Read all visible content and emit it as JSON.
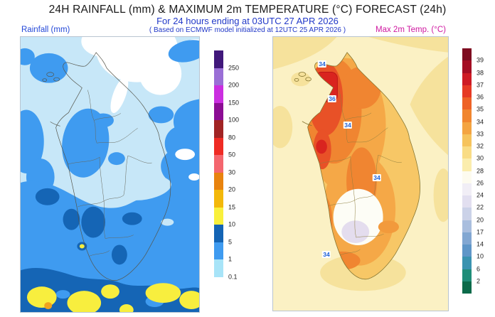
{
  "header": {
    "title": "24H RAINFALL (mm) & MAXIMUM 2m TEMPERATURE (°C) FORECAST (24h)",
    "subtitle": "For 24 hours ending at 03UTC 27 APR 2026",
    "model_note": "( Based on ECMWF model initialized at 12UTC 25 APR 2026 )"
  },
  "rainfall_panel": {
    "label": "Rainfall (mm)",
    "colorbar": {
      "unit": "mm",
      "tick_labels": [
        "250",
        "200",
        "150",
        "100",
        "80",
        "50",
        "30",
        "20",
        "15",
        "10",
        "5",
        "1",
        "0.1"
      ],
      "segment_colors_top_to_bottom": [
        "#41187b",
        "#9a6fd6",
        "#cb2ee0",
        "#8c0d94",
        "#a12424",
        "#ef2b24",
        "#f4666e",
        "#e8830e",
        "#f3b80a",
        "#f9f03c",
        "#1464b4",
        "#3f9bf0",
        "#a8e4f8"
      ]
    }
  },
  "temperature_panel": {
    "label": "Max 2m Temp. (°C)",
    "colorbar": {
      "unit": "°C",
      "tick_labels": [
        "39",
        "38",
        "37",
        "36",
        "35",
        "34",
        "33",
        "32",
        "30",
        "28",
        "26",
        "24",
        "22",
        "20",
        "17",
        "14",
        "10",
        "6",
        "2"
      ],
      "segment_colors_top_to_bottom": [
        "#7e0c20",
        "#a40e23",
        "#ce1b24",
        "#e63a24",
        "#ee6226",
        "#f1862f",
        "#f4a441",
        "#f6c35c",
        "#f9dc85",
        "#fbedad",
        "#fdfbef",
        "#f1eef6",
        "#e2dff0",
        "#cbd2e8",
        "#a9bede",
        "#82a7d2",
        "#5f96c8",
        "#3a93b0",
        "#1f8d78",
        "#0c6b4a"
      ]
    },
    "contour_labels": [
      "34",
      "36",
      "34",
      "34",
      "34"
    ]
  },
  "colors": {
    "title_text": "#1a1a1a",
    "header_blue": "#2138c8",
    "rainfall_label_blue": "#2448d8",
    "temp_label_magenta": "#cf18a0",
    "contour_label_blue": "#1b5ed6",
    "map_border": "#b9c5d1"
  }
}
